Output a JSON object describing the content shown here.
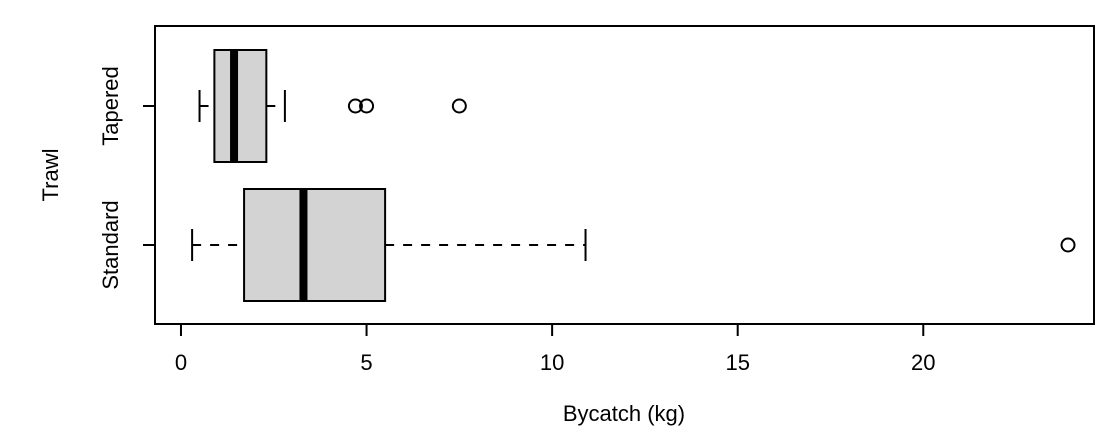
{
  "chart_data": {
    "type": "boxplot",
    "orientation": "horizontal",
    "xlabel": "Bycatch (kg)",
    "ylabel": "Trawl",
    "xlim": [
      -0.7,
      24.6
    ],
    "xticks": [
      0,
      5,
      10,
      15,
      20
    ],
    "categories": [
      "Standard",
      "Tapered"
    ],
    "boxes": [
      {
        "group": "Standard",
        "whisker_low": 0.3,
        "q1": 1.7,
        "median": 3.3,
        "q3": 5.5,
        "whisker_high": 10.9,
        "outliers": [
          23.9
        ]
      },
      {
        "group": "Tapered",
        "whisker_low": 0.5,
        "q1": 0.9,
        "median": 1.43,
        "q3": 2.3,
        "whisker_high": 2.8,
        "outliers": [
          4.7,
          5.0,
          7.5
        ]
      }
    ],
    "colors": {
      "box_fill": "#d3d3d3",
      "stroke": "#000000"
    },
    "grid": false,
    "legend": "none"
  }
}
